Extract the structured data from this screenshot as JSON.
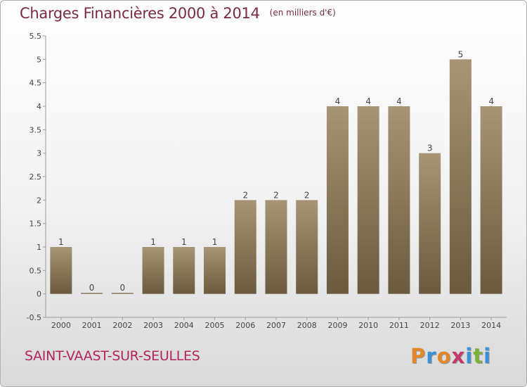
{
  "title": {
    "main": "Charges Financières 2000 à 2014",
    "unit": "(en milliers d'€)"
  },
  "commune": "SAINT-VAAST-SUR-SEULLES",
  "brand": {
    "text": "Proxiti",
    "letter_colors": [
      "#e0882a",
      "#3d8fd6",
      "#e0882a",
      "#c23a6a",
      "#3d8fd6",
      "#7bb23a",
      "#3d8fd6"
    ]
  },
  "colors": {
    "bar_top": "#a89476",
    "bar_bottom": "#6b5a3e",
    "title": "#7a2b47",
    "commune": "#b0255a"
  },
  "chart_data": {
    "type": "bar",
    "categories": [
      "2000",
      "2001",
      "2002",
      "2003",
      "2004",
      "2005",
      "2006",
      "2007",
      "2008",
      "2009",
      "2010",
      "2011",
      "2012",
      "2013",
      "2014"
    ],
    "values": [
      1,
      0,
      0,
      1,
      1,
      1,
      2,
      2,
      2,
      4,
      4,
      4,
      3,
      5,
      4
    ],
    "data_labels": [
      "1",
      "0",
      "0",
      "1",
      "1",
      "1",
      "2",
      "2",
      "2",
      "4",
      "4",
      "4",
      "3",
      "5",
      "4"
    ],
    "ylim": [
      -0.5,
      5.5
    ],
    "yticks": [
      "-0.5",
      "0",
      "0.5",
      "1",
      "1.5",
      "2",
      "2.5",
      "3",
      "3.5",
      "4",
      "4.5",
      "5",
      "5.5"
    ],
    "ytick_values": [
      -0.5,
      0,
      0.5,
      1,
      1.5,
      2,
      2.5,
      3,
      3.5,
      4,
      4.5,
      5,
      5.5
    ],
    "grid": false,
    "legend": "none"
  }
}
